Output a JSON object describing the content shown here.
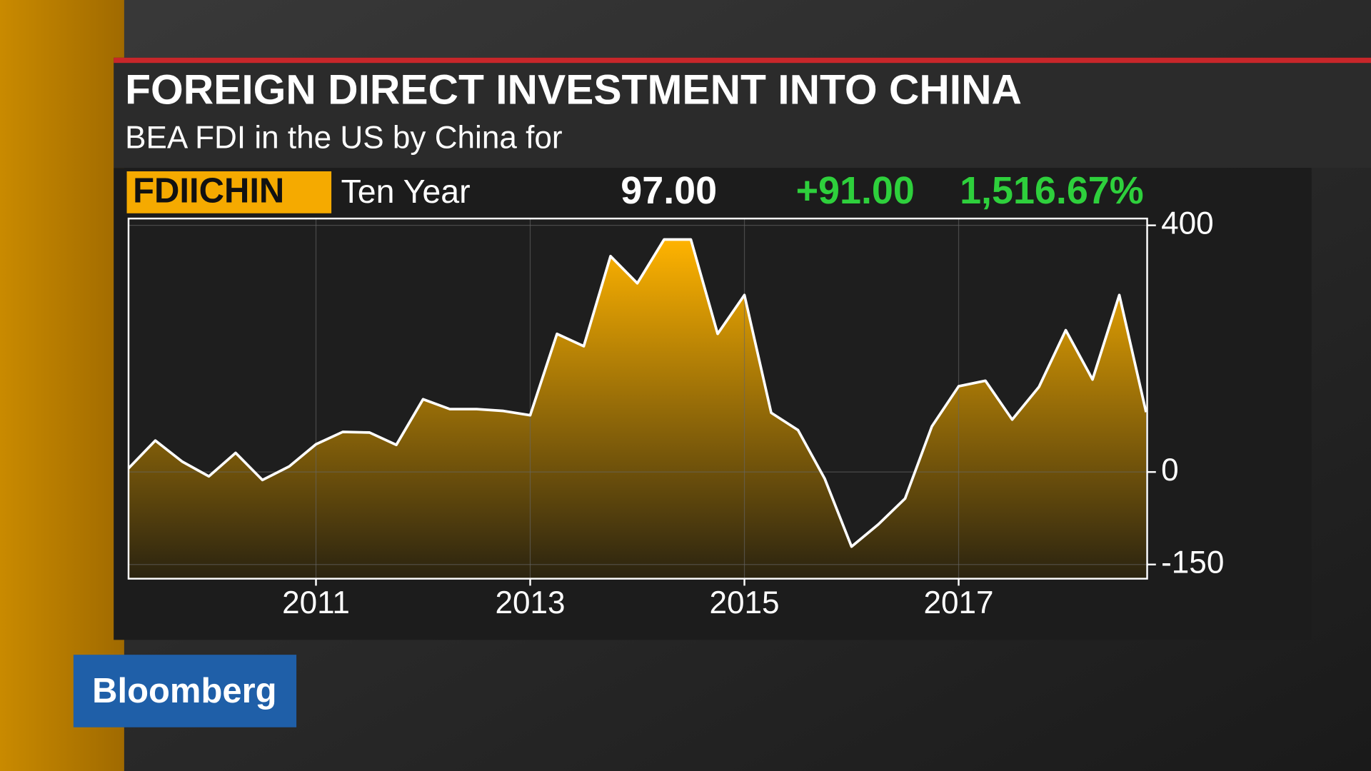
{
  "chart_data": {
    "type": "area",
    "title": "FOREIGN DIRECT INVESTMENT INTO CHINA",
    "subtitle": "BEA FDI in the US by China for",
    "ticker": "FDIICHIN",
    "period": "Ten Year",
    "last_value": "97.00",
    "net_change": "+91.00",
    "pct_change": "1,516.67%",
    "brand": "Bloomberg",
    "x": [
      2009.25,
      2009.5,
      2009.75,
      2010,
      2010.25,
      2010.5,
      2010.75,
      2011,
      2011.25,
      2011.5,
      2011.75,
      2012,
      2012.25,
      2012.5,
      2012.75,
      2013,
      2013.25,
      2013.5,
      2013.75,
      2014,
      2014.25,
      2014.5,
      2014.75,
      2015,
      2015.25,
      2015.5,
      2015.75,
      2016,
      2016.25,
      2016.5,
      2016.75,
      2017,
      2017.25,
      2017.5,
      2017.75,
      2018,
      2018.25,
      2018.5,
      2018.75
    ],
    "values": [
      6,
      51,
      17,
      -7,
      31,
      -13,
      9,
      45,
      65,
      64,
      44,
      118,
      102,
      102,
      99,
      92,
      224,
      204,
      350,
      306,
      377,
      377,
      224,
      287,
      96,
      68,
      -11,
      -121,
      -85,
      -43,
      74,
      139,
      148,
      85,
      138,
      230,
      150,
      287,
      97
    ],
    "color": "#f5aa00",
    "xlim": [
      2009.25,
      2018.76
    ],
    "ylim": [
      -173,
      411
    ],
    "xticks": [
      2011,
      2013,
      2015,
      2017
    ],
    "yticks": [
      400,
      0,
      -150
    ],
    "grid": true
  }
}
